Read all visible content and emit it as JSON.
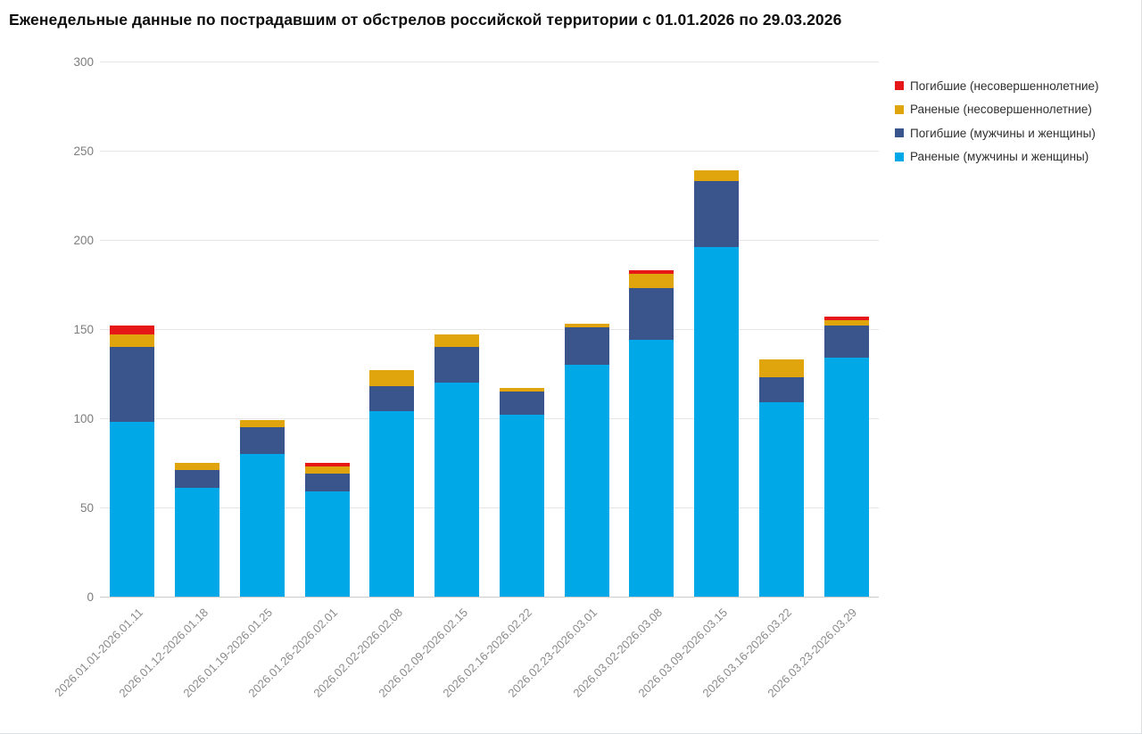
{
  "title": "Еженедельные данные по пострадавшим от обстрелов российской территории с 01.01.2026 по 29.03.2026",
  "chart_data": {
    "type": "bar",
    "stacked": true,
    "title": "Еженедельные данные по пострадавшим от обстрелов российской территории с 01.01.2026 по 29.03.2026",
    "categories": [
      "2026.01.01-2026.01.11",
      "2026.01.12-2026.01.18",
      "2026.01.19-2026.01.25",
      "2026.01.26-2026.02.01",
      "2026.02.02-2026.02.08",
      "2026.02.09-2026.02.15",
      "2026.02.16-2026.02.22",
      "2026.02.23-2026.03.01",
      "2026.03.02-2026.03.08",
      "2026.03.09-2026.03.15",
      "2026.03.16-2026.03.22",
      "2026.03.23-2026.03.29"
    ],
    "series": [
      {
        "name": "Раненые (мужчины и женщины)",
        "color": "#00a8e8",
        "values": [
          98,
          61,
          80,
          59,
          104,
          120,
          102,
          130,
          144,
          196,
          109,
          134
        ]
      },
      {
        "name": "Погибшие (мужчины и женщины)",
        "color": "#3a548c",
        "values": [
          42,
          10,
          15,
          10,
          14,
          20,
          13,
          21,
          29,
          37,
          14,
          18
        ]
      },
      {
        "name": "Раненые (несовершеннолетние)",
        "color": "#e0a50c",
        "values": [
          7,
          4,
          4,
          4,
          9,
          7,
          2,
          2,
          8,
          6,
          10,
          3
        ]
      },
      {
        "name": "Погибшие (несовершеннолетние)",
        "color": "#e51717",
        "values": [
          5,
          0,
          0,
          2,
          0,
          0,
          0,
          0,
          2,
          0,
          0,
          2
        ]
      }
    ],
    "totals": [
      152,
      75,
      99,
      75,
      127,
      147,
      117,
      153,
      183,
      239,
      133,
      157
    ],
    "ylim": [
      0,
      300
    ],
    "y_ticks": [
      0,
      50,
      100,
      150,
      200,
      250,
      300
    ],
    "grid": true,
    "legend_position": "top-right",
    "legend_order": "reversed",
    "xlabel": "",
    "ylabel": ""
  }
}
